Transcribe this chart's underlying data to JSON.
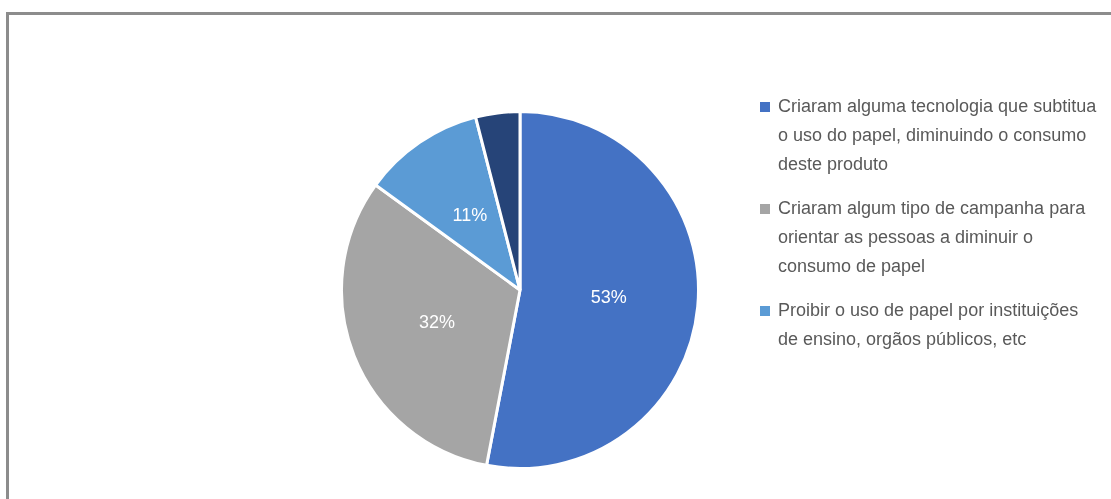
{
  "chart_data": {
    "type": "pie",
    "categories": [
      "Criaram alguma tecnologia que subtitua o uso do papel, diminuindo o consumo deste produto",
      "Criaram algum tipo de campanha para orientar as pessoas a diminuir o consumo de papel",
      "Proibir o uso de papel por instituições de ensino, orgãos públicos, etc",
      null
    ],
    "values": [
      53,
      32,
      11,
      4
    ],
    "colors": [
      "#4472c4",
      "#a5a5a5",
      "#5b9bd5",
      "#264478"
    ],
    "value_labels": [
      "53%",
      "32%",
      "11%",
      null
    ],
    "legend": "right"
  }
}
